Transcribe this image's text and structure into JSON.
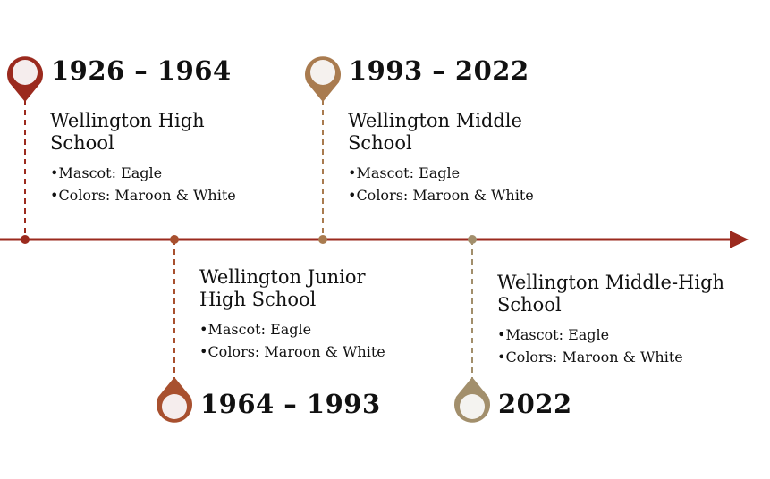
{
  "colors": {
    "axis": "#9b2a1e",
    "pins": [
      "#9b2a1e",
      "#a8502f",
      "#a97b4f",
      "#a28f6c"
    ],
    "pin_fill": "#f5eded"
  },
  "events": [
    {
      "years": "1926 – 1964",
      "name": "Wellington High School",
      "mascot": "•Mascot: Eagle",
      "colors": "•Colors: Maroon & White",
      "position": "above"
    },
    {
      "years": "1964 – 1993",
      "name": "Wellington Junior High  School",
      "mascot": "•Mascot: Eagle",
      "colors": "•Colors: Maroon & White",
      "position": "below"
    },
    {
      "years": "1993 – 2022",
      "name": "Wellington Middle School",
      "mascot": "•Mascot: Eagle",
      "colors": "•Colors: Maroon & White",
      "position": "above"
    },
    {
      "years": "2022",
      "name": "Wellington Middle-High School",
      "mascot": "•Mascot: Eagle",
      "colors": "•Colors: Maroon & White",
      "position": "below"
    }
  ]
}
